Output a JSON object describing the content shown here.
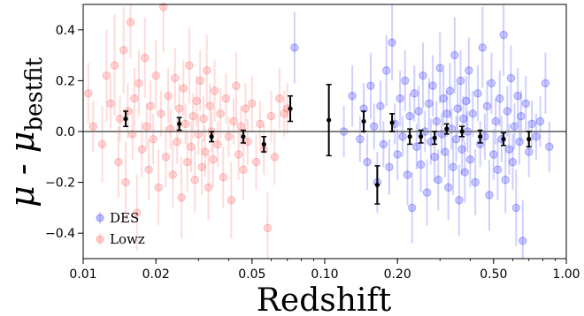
{
  "chart_data": {
    "type": "scatter",
    "xlabel": "Redshift",
    "ylabel": {
      "base": "μ - μ",
      "subscript": "bestfit"
    },
    "xscale": "log",
    "xlim": [
      0.01,
      1.0
    ],
    "ylim": [
      -0.5,
      0.5
    ],
    "xticks": [
      {
        "value": 0.01,
        "label": "0.01"
      },
      {
        "value": 0.02,
        "label": "0.02"
      },
      {
        "value": 0.05,
        "label": "0.05"
      },
      {
        "value": 0.1,
        "label": "0.10"
      },
      {
        "value": 0.2,
        "label": "0.20"
      },
      {
        "value": 0.5,
        "label": "0.50"
      },
      {
        "value": 1.0,
        "label": "1.00"
      }
    ],
    "yticks": [
      {
        "value": 0.4,
        "label": "0.4"
      },
      {
        "value": 0.2,
        "label": "0.2"
      },
      {
        "value": 0.0,
        "label": "0.0"
      },
      {
        "value": -0.2,
        "label": "−0.2"
      },
      {
        "value": -0.4,
        "label": "−0.4"
      }
    ],
    "reference_line": {
      "y": 0.0,
      "color": "#808080"
    },
    "legend": {
      "position": "lower-left",
      "entries": [
        "DES",
        "Lowz"
      ]
    },
    "colors": {
      "DES": "#2b2bff",
      "Lowz": "#ff5a5a",
      "binned": "#000000"
    },
    "series": [
      {
        "name": "Lowz",
        "points": [
          [
            0.0105,
            0.15,
            0.12
          ],
          [
            0.011,
            0.02,
            0.1
          ],
          [
            0.012,
            -0.05,
            0.15
          ],
          [
            0.0125,
            0.22,
            0.18
          ],
          [
            0.013,
            0.11,
            0.1
          ],
          [
            0.0135,
            0.26,
            0.2
          ],
          [
            0.014,
            -0.12,
            0.14
          ],
          [
            0.0142,
            0.05,
            0.09
          ],
          [
            0.0147,
            0.32,
            0.17
          ],
          [
            0.015,
            -0.2,
            0.16
          ],
          [
            0.0153,
            0.08,
            0.11
          ],
          [
            0.0157,
            0.43,
            0.14
          ],
          [
            0.016,
            -0.01,
            0.1
          ],
          [
            0.0163,
            0.13,
            0.12
          ],
          [
            0.0167,
            -0.32,
            0.15
          ],
          [
            0.017,
            0.19,
            0.13
          ],
          [
            0.0175,
            -0.07,
            0.11
          ],
          [
            0.018,
            0.29,
            0.16
          ],
          [
            0.0183,
            0.02,
            0.09
          ],
          [
            0.0187,
            -0.15,
            0.12
          ],
          [
            0.019,
            0.1,
            0.1
          ],
          [
            0.0195,
            -0.03,
            0.1
          ],
          [
            0.02,
            0.22,
            0.14
          ],
          [
            0.0205,
            -0.22,
            0.15
          ],
          [
            0.021,
            0.07,
            0.09
          ],
          [
            0.0215,
            0.49,
            0.18
          ],
          [
            0.022,
            -0.1,
            0.12
          ],
          [
            0.0225,
            0.14,
            0.11
          ],
          [
            0.023,
            0.01,
            0.08
          ],
          [
            0.0235,
            -0.17,
            0.13
          ],
          [
            0.024,
            0.21,
            0.12
          ],
          [
            0.0245,
            -0.04,
            0.09
          ],
          [
            0.025,
            0.09,
            0.1
          ],
          [
            0.0255,
            -0.26,
            0.16
          ],
          [
            0.026,
            0.17,
            0.11
          ],
          [
            0.0265,
            0.03,
            0.08
          ],
          [
            0.027,
            -0.12,
            0.12
          ],
          [
            0.0275,
            0.26,
            0.15
          ],
          [
            0.028,
            -0.06,
            0.1
          ],
          [
            0.0285,
            0.06,
            0.09
          ],
          [
            0.029,
            -0.19,
            0.13
          ],
          [
            0.0295,
            0.12,
            0.1
          ],
          [
            0.03,
            -0.01,
            0.08
          ],
          [
            0.0305,
            0.2,
            0.12
          ],
          [
            0.031,
            -0.14,
            0.11
          ],
          [
            0.0315,
            0.05,
            0.09
          ],
          [
            0.032,
            -0.08,
            0.1
          ],
          [
            0.0325,
            0.24,
            0.14
          ],
          [
            0.033,
            -0.22,
            0.13
          ],
          [
            0.0335,
            0.1,
            0.09
          ],
          [
            0.034,
            0.0,
            0.08
          ],
          [
            0.0345,
            -0.11,
            0.11
          ],
          [
            0.035,
            0.16,
            0.12
          ],
          [
            0.036,
            -0.05,
            0.09
          ],
          [
            0.037,
            0.07,
            0.1
          ],
          [
            0.038,
            -0.18,
            0.12
          ],
          [
            0.039,
            0.13,
            0.1
          ],
          [
            0.04,
            -0.02,
            0.08
          ],
          [
            0.041,
            -0.27,
            0.15
          ],
          [
            0.042,
            0.04,
            0.09
          ],
          [
            0.043,
            0.18,
            0.13
          ],
          [
            0.044,
            -0.09,
            0.1
          ],
          [
            0.045,
            0.02,
            0.08
          ],
          [
            0.046,
            -0.15,
            0.12
          ],
          [
            0.047,
            0.09,
            0.1
          ],
          [
            0.048,
            -0.04,
            0.09
          ],
          [
            0.05,
            0.11,
            0.11
          ],
          [
            0.052,
            -0.12,
            0.11
          ],
          [
            0.054,
            0.03,
            0.09
          ],
          [
            0.056,
            -0.07,
            0.1
          ],
          [
            0.058,
            -0.38,
            0.14
          ],
          [
            0.06,
            0.06,
            0.1
          ],
          [
            0.062,
            -0.1,
            0.11
          ],
          [
            0.065,
            0.13,
            0.12
          ],
          [
            0.068,
            0.07,
            0.09
          ],
          [
            0.07,
            0.09,
            0.1
          ]
        ]
      },
      {
        "name": "DES",
        "points": [
          [
            0.075,
            0.33,
            0.14
          ],
          [
            0.12,
            0.0,
            0.1
          ],
          [
            0.13,
            0.14,
            0.12
          ],
          [
            0.14,
            -0.03,
            0.09
          ],
          [
            0.145,
            0.09,
            0.1
          ],
          [
            0.15,
            -0.12,
            0.11
          ],
          [
            0.155,
            0.18,
            0.13
          ],
          [
            0.16,
            0.02,
            0.09
          ],
          [
            0.165,
            -0.2,
            0.12
          ],
          [
            0.17,
            0.1,
            0.1
          ],
          [
            0.175,
            -0.05,
            0.09
          ],
          [
            0.18,
            0.24,
            0.14
          ],
          [
            0.185,
            -0.14,
            0.11
          ],
          [
            0.19,
            0.35,
            0.15
          ],
          [
            0.195,
            0.03,
            0.08
          ],
          [
            0.2,
            -0.09,
            0.1
          ],
          [
            0.205,
            0.13,
            0.11
          ],
          [
            0.21,
            -0.02,
            0.08
          ],
          [
            0.215,
            0.2,
            0.12
          ],
          [
            0.22,
            -0.17,
            0.12
          ],
          [
            0.225,
            0.06,
            0.09
          ],
          [
            0.23,
            -0.3,
            0.14
          ],
          [
            0.235,
            0.15,
            0.11
          ],
          [
            0.24,
            -0.06,
            0.09
          ],
          [
            0.245,
            0.08,
            0.1
          ],
          [
            0.25,
            -0.13,
            0.11
          ],
          [
            0.255,
            0.22,
            0.13
          ],
          [
            0.26,
            0.0,
            0.08
          ],
          [
            0.265,
            -0.24,
            0.13
          ],
          [
            0.27,
            0.11,
            0.1
          ],
          [
            0.275,
            -0.04,
            0.09
          ],
          [
            0.28,
            0.18,
            0.12
          ],
          [
            0.285,
            -0.1,
            0.1
          ],
          [
            0.29,
            0.04,
            0.08
          ],
          [
            0.295,
            -0.19,
            0.12
          ],
          [
            0.3,
            0.25,
            0.14
          ],
          [
            0.305,
            -0.01,
            0.08
          ],
          [
            0.31,
            0.13,
            0.11
          ],
          [
            0.315,
            -0.08,
            0.1
          ],
          [
            0.32,
            0.07,
            0.09
          ],
          [
            0.325,
            -0.22,
            0.13
          ],
          [
            0.33,
            0.16,
            0.11
          ],
          [
            0.335,
            0.01,
            0.08
          ],
          [
            0.34,
            -0.14,
            0.11
          ],
          [
            0.345,
            0.3,
            0.15
          ],
          [
            0.35,
            -0.03,
            0.09
          ],
          [
            0.355,
            0.09,
            0.1
          ],
          [
            0.36,
            -0.27,
            0.14
          ],
          [
            0.365,
            0.2,
            0.12
          ],
          [
            0.37,
            -0.07,
            0.1
          ],
          [
            0.375,
            0.05,
            0.09
          ],
          [
            0.38,
            -0.16,
            0.12
          ],
          [
            0.385,
            0.12,
            0.1
          ],
          [
            0.39,
            0.0,
            0.08
          ],
          [
            0.395,
            0.24,
            0.13
          ],
          [
            0.4,
            -0.11,
            0.11
          ],
          [
            0.41,
            0.07,
            0.09
          ],
          [
            0.42,
            -0.2,
            0.13
          ],
          [
            0.43,
            0.15,
            0.11
          ],
          [
            0.44,
            -0.05,
            0.09
          ],
          [
            0.45,
            0.33,
            0.16
          ],
          [
            0.46,
            -0.02,
            0.09
          ],
          [
            0.47,
            0.1,
            0.1
          ],
          [
            0.48,
            -0.25,
            0.14
          ],
          [
            0.49,
            0.19,
            0.12
          ],
          [
            0.5,
            -0.09,
            0.1
          ],
          [
            0.51,
            0.04,
            0.09
          ],
          [
            0.52,
            -0.15,
            0.12
          ],
          [
            0.53,
            0.13,
            0.11
          ],
          [
            0.54,
            -0.03,
            0.09
          ],
          [
            0.55,
            0.38,
            0.16
          ],
          [
            0.56,
            -0.19,
            0.13
          ],
          [
            0.57,
            0.08,
            0.1
          ],
          [
            0.58,
            -0.07,
            0.1
          ],
          [
            0.59,
            0.21,
            0.13
          ],
          [
            0.6,
            -0.12,
            0.11
          ],
          [
            0.61,
            0.02,
            0.09
          ],
          [
            0.62,
            -0.3,
            0.15
          ],
          [
            0.63,
            0.14,
            0.11
          ],
          [
            0.64,
            -0.04,
            0.09
          ],
          [
            0.65,
            0.06,
            0.1
          ],
          [
            0.66,
            -0.43,
            0.16
          ],
          [
            0.68,
            0.11,
            0.11
          ],
          [
            0.7,
            -0.08,
            0.1
          ],
          [
            0.72,
            0.03,
            0.09
          ],
          [
            0.75,
            -0.02,
            0.09
          ],
          [
            0.78,
            0.04,
            0.1
          ],
          [
            0.82,
            0.19,
            0.12
          ],
          [
            0.85,
            -0.06,
            0.1
          ]
        ]
      },
      {
        "name": "binned",
        "points": [
          [
            0.015,
            0.05,
            0.03
          ],
          [
            0.025,
            0.03,
            0.025
          ],
          [
            0.034,
            -0.02,
            0.02
          ],
          [
            0.046,
            -0.02,
            0.025
          ],
          [
            0.056,
            -0.05,
            0.03
          ],
          [
            0.072,
            0.09,
            0.05
          ],
          [
            0.104,
            0.045,
            0.14
          ],
          [
            0.145,
            0.04,
            0.04
          ],
          [
            0.165,
            -0.21,
            0.075
          ],
          [
            0.19,
            0.035,
            0.035
          ],
          [
            0.225,
            -0.02,
            0.03
          ],
          [
            0.25,
            -0.02,
            0.025
          ],
          [
            0.285,
            -0.025,
            0.025
          ],
          [
            0.32,
            0.01,
            0.02
          ],
          [
            0.37,
            0.0,
            0.02
          ],
          [
            0.44,
            -0.02,
            0.025
          ],
          [
            0.55,
            -0.03,
            0.025
          ],
          [
            0.7,
            -0.03,
            0.03
          ]
        ]
      }
    ]
  }
}
